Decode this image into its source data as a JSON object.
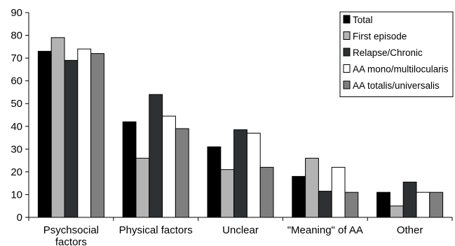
{
  "chart_data": {
    "type": "bar",
    "title": "",
    "xlabel": "",
    "ylabel": "",
    "ylim": [
      0,
      90
    ],
    "yticks": [
      0,
      10,
      20,
      30,
      40,
      50,
      60,
      70,
      80,
      90
    ],
    "grid": false,
    "legend_position": "top-right",
    "categories": [
      "Psychsocial factors",
      "Physical factors",
      "Unclear",
      "\"Meaning\" of AA",
      "Other"
    ],
    "category_lines": [
      [
        "Psychsocial",
        "factors"
      ],
      [
        "Physical factors"
      ],
      [
        "Unclear"
      ],
      [
        "\"Meaning\" of AA"
      ],
      [
        "Other"
      ]
    ],
    "series": [
      {
        "name": "Total",
        "color": "#000000",
        "values": [
          73,
          42,
          31,
          18,
          11
        ]
      },
      {
        "name": "First episode",
        "color": "#b3b3b3",
        "values": [
          79,
          26,
          21,
          26,
          5
        ]
      },
      {
        "name": "Relapse/Chronic",
        "color": "#2e3133",
        "values": [
          69,
          54,
          38.5,
          11.5,
          15.5
        ]
      },
      {
        "name": "AA mono/multilocularis",
        "color": "#ffffff",
        "values": [
          74,
          44.5,
          37,
          22,
          11
        ]
      },
      {
        "name": "AA totalis/universalis",
        "color": "#7f7f7f",
        "values": [
          72,
          39,
          22,
          11,
          11
        ]
      }
    ]
  }
}
